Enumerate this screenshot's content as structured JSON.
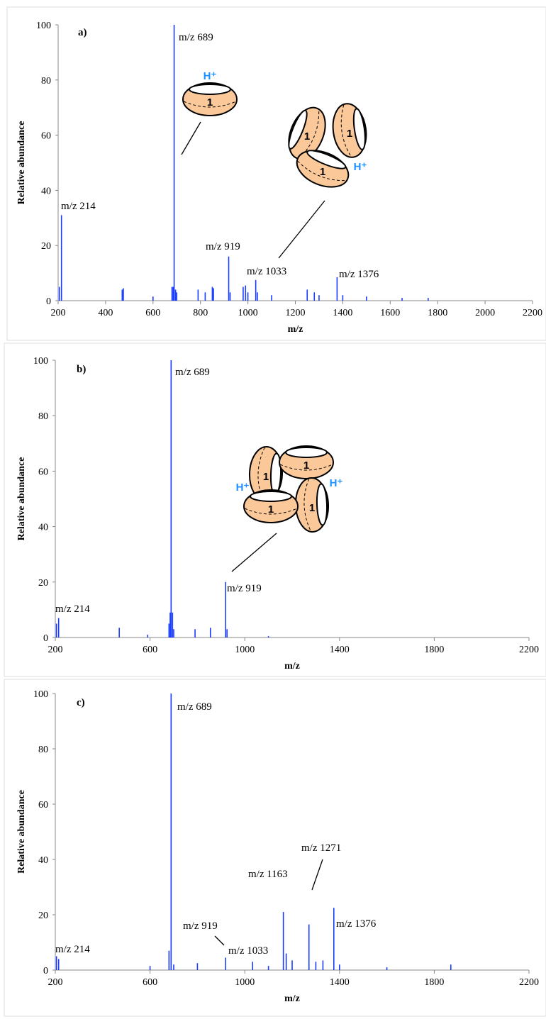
{
  "chart_data": [
    {
      "type": "bar",
      "panel": "a)",
      "xlabel": "m/z",
      "ylabel": "Relative abundance",
      "color": "#1a3cff",
      "x": [
        205,
        214,
        470,
        475,
        600,
        680,
        685,
        689,
        695,
        700,
        790,
        820,
        850,
        855,
        919,
        925,
        980,
        990,
        1000,
        1033,
        1040,
        1100,
        1250,
        1280,
        1300,
        1376,
        1400,
        1500,
        1650,
        1760
      ],
      "values": [
        5,
        31,
        4,
        4.5,
        1.5,
        5,
        5,
        100,
        4,
        3,
        4,
        3,
        5,
        4.5,
        16,
        3,
        5,
        5.5,
        3,
        7.5,
        3,
        2,
        4,
        3,
        2,
        8.5,
        2,
        1.5,
        1,
        1
      ],
      "xlim": [
        200,
        2200
      ],
      "ylim": [
        0,
        100
      ],
      "xticks": [
        200,
        400,
        600,
        800,
        1000,
        1200,
        1400,
        1600,
        1800,
        2000,
        2200
      ],
      "yticks": [
        0,
        20,
        40,
        60,
        80,
        100
      ],
      "annotations": [
        "m/z 689",
        "m/z 214",
        "m/z 919",
        "m/z 1033",
        "m/z 1376"
      ],
      "diagram": {
        "monomer": "1",
        "proton": "H⁺"
      }
    },
    {
      "type": "bar",
      "panel": "b)",
      "xlabel": "m/z",
      "ylabel": "Relative abundance",
      "color": "#1a3cff",
      "x": [
        205,
        214,
        470,
        590,
        680,
        685,
        689,
        695,
        700,
        790,
        855,
        919,
        925,
        1100
      ],
      "values": [
        5,
        7,
        3.5,
        1,
        5,
        9,
        100,
        9,
        3,
        3,
        3.5,
        20,
        3,
        0.5
      ],
      "xlim": [
        200,
        2200
      ],
      "ylim": [
        0,
        100
      ],
      "xticks": [
        200,
        600,
        1000,
        1400,
        1800,
        2200
      ],
      "yticks": [
        0,
        20,
        40,
        60,
        80,
        100
      ],
      "annotations": [
        "m/z 689",
        "m/z 214",
        "m/z 919"
      ],
      "diagram": {
        "monomer": "1",
        "proton": "H⁺"
      }
    },
    {
      "type": "bar",
      "panel": "c)",
      "xlabel": "m/z",
      "ylabel": "Relative abundance",
      "color": "#1a3cff",
      "x": [
        205,
        214,
        600,
        680,
        689,
        700,
        800,
        919,
        1033,
        1100,
        1163,
        1175,
        1200,
        1271,
        1300,
        1330,
        1376,
        1400,
        1600,
        1870
      ],
      "values": [
        5,
        4,
        1.5,
        7,
        100,
        2,
        2.5,
        4.5,
        3,
        1.5,
        21,
        6,
        3.5,
        16.5,
        3,
        3.5,
        22.5,
        2,
        1,
        2
      ],
      "xlim": [
        200,
        2200
      ],
      "ylim": [
        0,
        100
      ],
      "xticks": [
        200,
        600,
        1000,
        1400,
        1800,
        2200
      ],
      "yticks": [
        0,
        20,
        40,
        60,
        80,
        100
      ],
      "annotations": [
        "m/z 689",
        "m/z 214",
        "m/z 919",
        "m/z 1033",
        "m/z 1163",
        "m/z 1271",
        "m/z 1376"
      ]
    }
  ]
}
